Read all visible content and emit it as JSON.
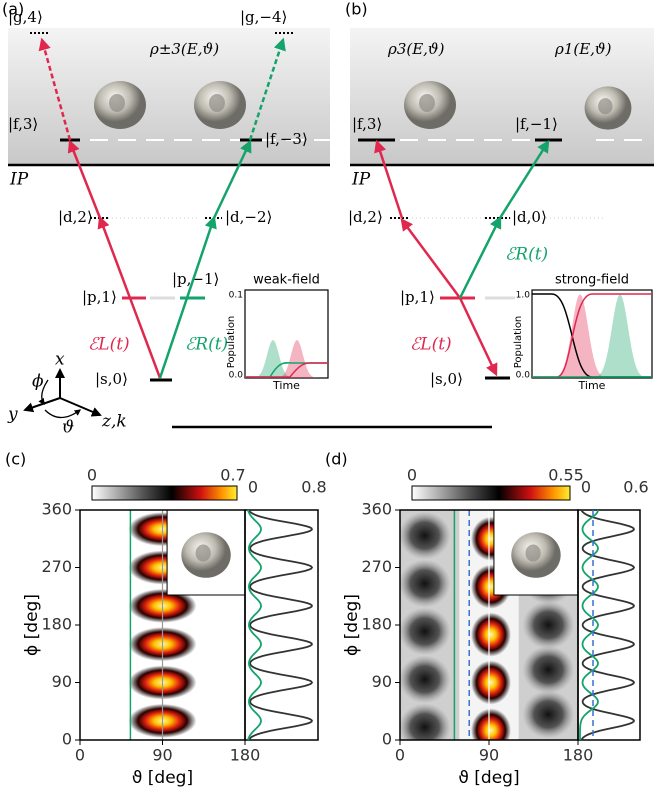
{
  "panel_a": {
    "label": "(a)",
    "ip": "IP",
    "rho": "ρ±3(E,ϑ)",
    "levels": [
      "|g,4⟩",
      "|g,−4⟩",
      "|f,3⟩",
      "|f,−3⟩",
      "|d,2⟩",
      "|d,−2⟩",
      "|p,1⟩",
      "|p,−1⟩",
      "|s,0⟩"
    ],
    "field_left": "ℰL(t)",
    "field_right": "ℰR(t)",
    "inset": {
      "title": "weak-field",
      "ylabel": "Population",
      "xlabel": "Time",
      "yticks": [
        "0.0",
        "0.1"
      ]
    }
  },
  "panel_b": {
    "label": "(b)",
    "ip": "IP",
    "rho_left": "ρ3(E,ϑ)",
    "rho_right": "ρ1(E,ϑ)",
    "levels": [
      "|f,3⟩",
      "|f,−1⟩",
      "|d,2⟩",
      "|d,0⟩",
      "|p,1⟩",
      "|s,0⟩"
    ],
    "field_left": "ℰL(t)",
    "field_right": "ℰR(t)",
    "inset": {
      "title": "strong-field",
      "ylabel": "Population",
      "xlabel": "Time",
      "yticks": [
        "0.0",
        "1.0"
      ]
    }
  },
  "axes_icon": [
    "x",
    "y",
    "z,k",
    "ϕ",
    "ϑ"
  ],
  "panel_c": {
    "label": "(c)",
    "colorbar_ticks": [
      "0",
      "0.7"
    ],
    "profile_ticks": [
      "0",
      "0.8"
    ],
    "yticks": [
      "0",
      "90",
      "180",
      "270",
      "360"
    ],
    "xticks": [
      "0",
      "90",
      "180"
    ],
    "ylabel": "ϕ [deg]",
    "xlabel": "ϑ [deg]"
  },
  "panel_d": {
    "label": "(d)",
    "colorbar_ticks": [
      "0",
      "0.55"
    ],
    "profile_ticks": [
      "0",
      "0.6"
    ],
    "yticks": [
      "0",
      "90",
      "180",
      "270",
      "360"
    ],
    "xticks": [
      "0",
      "90",
      "180"
    ],
    "ylabel": "ϕ [deg]",
    "xlabel": "ϑ [deg]"
  }
}
